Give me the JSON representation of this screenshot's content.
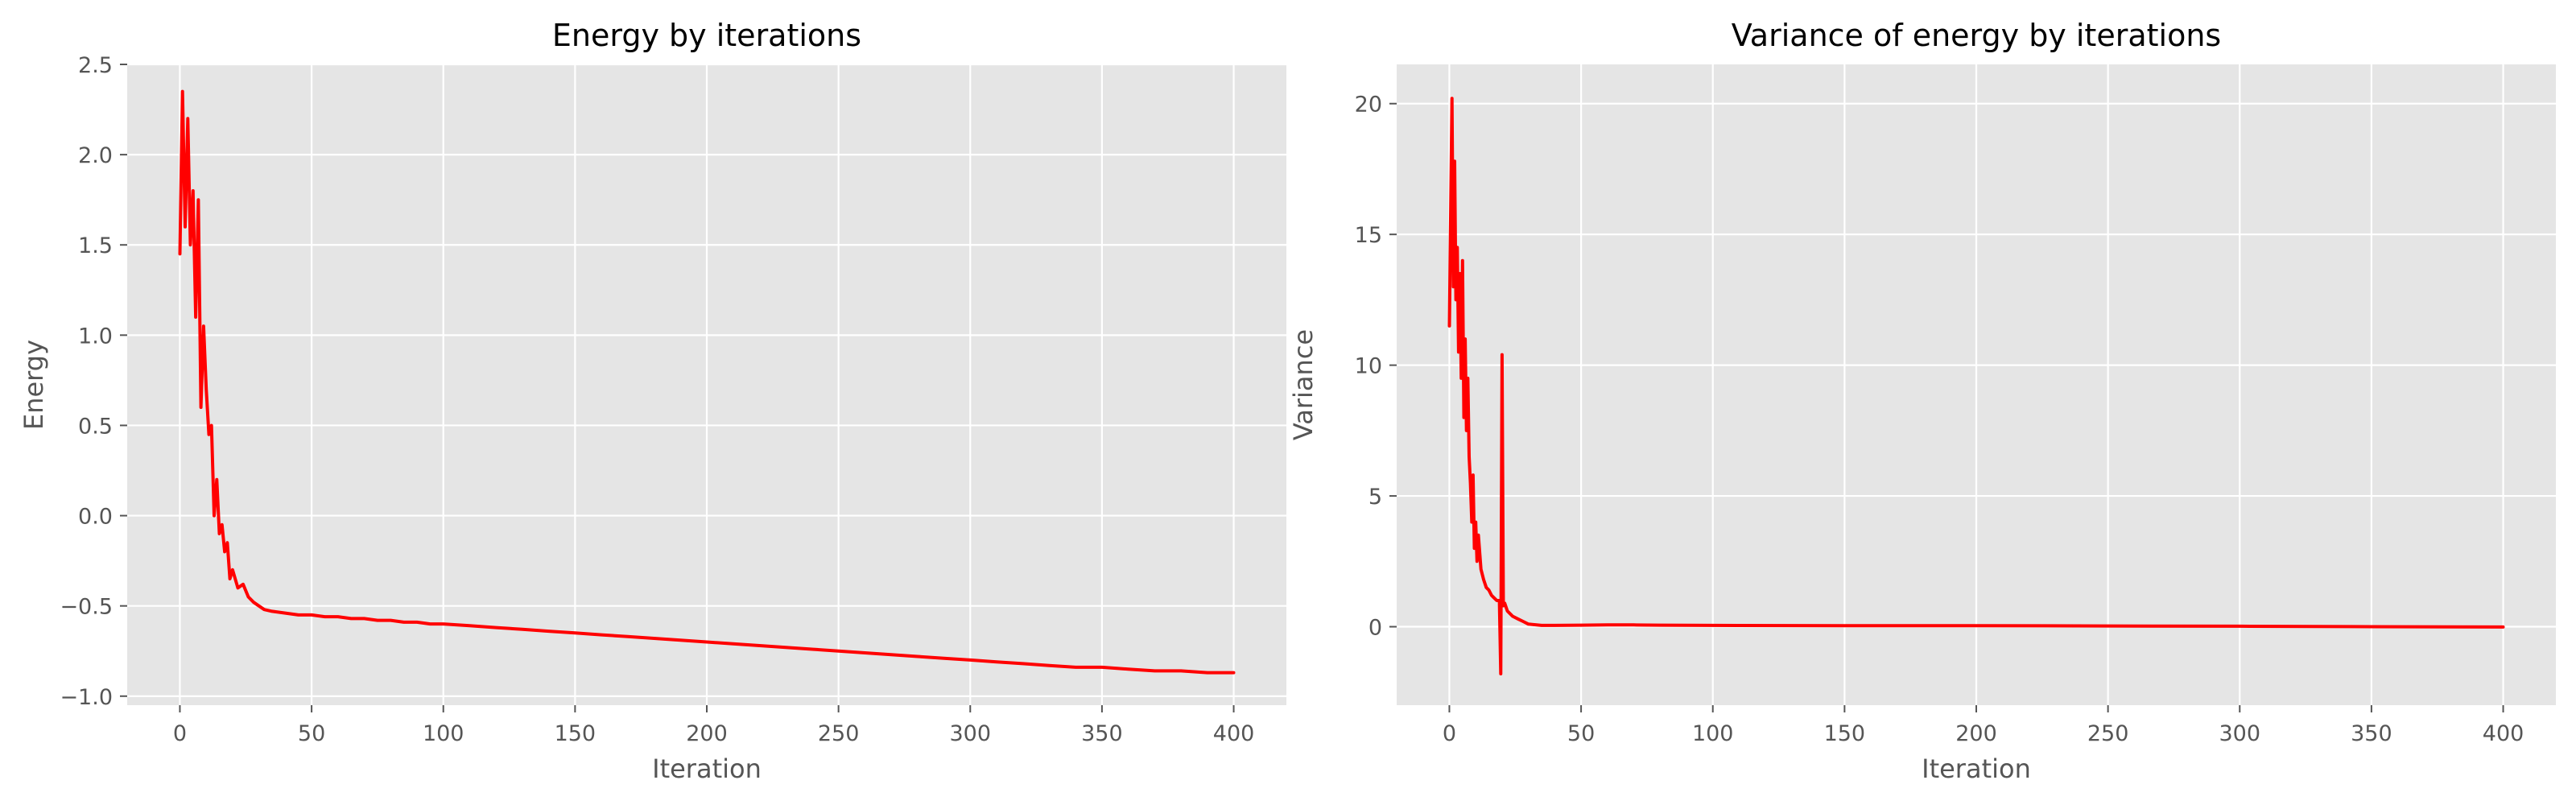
{
  "chart_data": [
    {
      "type": "line",
      "title": "Energy by iterations",
      "xlabel": "Iteration",
      "ylabel": "Energy",
      "xlim": [
        -20,
        420
      ],
      "ylim": [
        -1.05,
        2.5
      ],
      "xticks": [
        0,
        50,
        100,
        150,
        200,
        250,
        300,
        350,
        400
      ],
      "xtick_labels": [
        "0",
        "50",
        "100",
        "150",
        "200",
        "250",
        "300",
        "350",
        "400"
      ],
      "yticks": [
        -1.0,
        -0.5,
        0.0,
        0.5,
        1.0,
        1.5,
        2.0,
        2.5
      ],
      "ytick_labels": [
        "−1.0",
        "−0.5",
        "0.0",
        "0.5",
        "1.0",
        "1.5",
        "2.0",
        "2.5"
      ],
      "grid": true,
      "series": [
        {
          "color": "#ff0000",
          "x": [
            0,
            1,
            2,
            3,
            4,
            5,
            6,
            7,
            8,
            9,
            10,
            11,
            12,
            13,
            14,
            15,
            16,
            17,
            18,
            19,
            20,
            22,
            24,
            26,
            28,
            30,
            32,
            35,
            40,
            45,
            50,
            55,
            60,
            65,
            70,
            75,
            80,
            85,
            90,
            95,
            100,
            110,
            120,
            130,
            140,
            150,
            160,
            170,
            180,
            190,
            200,
            210,
            220,
            230,
            240,
            250,
            260,
            270,
            280,
            290,
            300,
            310,
            320,
            330,
            340,
            350,
            360,
            370,
            380,
            390,
            400
          ],
          "y": [
            1.45,
            2.35,
            1.6,
            2.2,
            1.5,
            1.8,
            1.1,
            1.75,
            0.6,
            1.05,
            0.7,
            0.45,
            0.5,
            0.0,
            0.2,
            -0.1,
            -0.05,
            -0.2,
            -0.15,
            -0.35,
            -0.3,
            -0.4,
            -0.38,
            -0.45,
            -0.48,
            -0.5,
            -0.52,
            -0.53,
            -0.54,
            -0.55,
            -0.55,
            -0.56,
            -0.56,
            -0.57,
            -0.57,
            -0.58,
            -0.58,
            -0.59,
            -0.59,
            -0.6,
            -0.6,
            -0.61,
            -0.62,
            -0.63,
            -0.64,
            -0.65,
            -0.66,
            -0.67,
            -0.68,
            -0.69,
            -0.7,
            -0.71,
            -0.72,
            -0.73,
            -0.74,
            -0.75,
            -0.76,
            -0.77,
            -0.78,
            -0.79,
            -0.8,
            -0.81,
            -0.82,
            -0.83,
            -0.84,
            -0.84,
            -0.85,
            -0.86,
            -0.86,
            -0.87,
            -0.87
          ]
        }
      ]
    },
    {
      "type": "line",
      "title": "Variance of energy by iterations",
      "xlabel": "Iteration",
      "ylabel": "Variance",
      "xlim": [
        -20,
        420
      ],
      "ylim": [
        -3.0,
        21.5
      ],
      "xticks": [
        0,
        50,
        100,
        150,
        200,
        250,
        300,
        350,
        400
      ],
      "xtick_labels": [
        "0",
        "50",
        "100",
        "150",
        "200",
        "250",
        "300",
        "350",
        "400"
      ],
      "yticks": [
        0,
        5,
        10,
        15,
        20
      ],
      "ytick_labels": [
        "0",
        "5",
        "10",
        "15",
        "20"
      ],
      "grid": true,
      "series": [
        {
          "color": "#ff0000",
          "x": [
            0,
            1,
            1.5,
            2,
            2.5,
            3,
            3.5,
            4,
            4.5,
            5,
            5.5,
            6,
            6.5,
            7,
            7.5,
            8,
            8.5,
            9,
            9.5,
            10,
            10.5,
            11,
            12,
            13,
            14,
            15,
            16,
            17,
            18,
            19,
            19.5,
            20,
            20.5,
            21,
            22,
            24,
            26,
            28,
            30,
            35,
            40,
            50,
            60,
            70,
            80,
            100,
            150,
            200,
            250,
            300,
            350,
            400
          ],
          "y": [
            11.5,
            20.2,
            13.0,
            17.8,
            12.5,
            14.5,
            10.5,
            13.5,
            9.5,
            14.0,
            8.0,
            11.0,
            7.5,
            9.5,
            6.5,
            5.5,
            4.0,
            5.8,
            3.0,
            4.0,
            2.5,
            3.5,
            2.2,
            1.8,
            1.5,
            1.4,
            1.2,
            1.1,
            1.0,
            1.0,
            -1.8,
            10.4,
            0.8,
            0.9,
            0.6,
            0.4,
            0.3,
            0.2,
            0.1,
            0.05,
            0.05,
            0.06,
            0.07,
            0.07,
            0.06,
            0.05,
            0.04,
            0.04,
            0.03,
            0.02,
            0.0,
            -0.01
          ]
        }
      ]
    }
  ]
}
